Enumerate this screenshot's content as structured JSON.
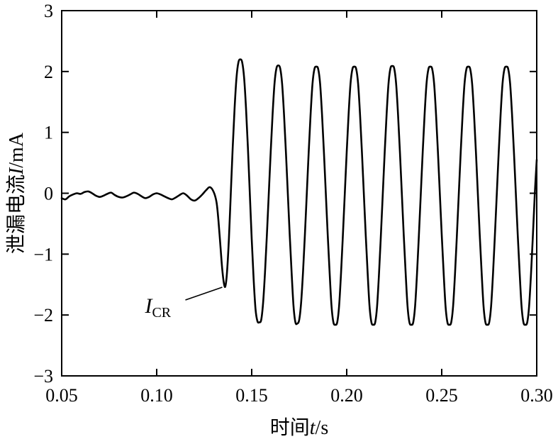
{
  "chart_data": {
    "type": "line",
    "xlabel": {
      "prefix": "时间",
      "var": "t",
      "unit": "/s"
    },
    "ylabel": {
      "prefix": "泄漏电流",
      "var": "I",
      "unit": "/mA"
    },
    "xlim": [
      0.05,
      0.3
    ],
    "ylim": [
      -3,
      3
    ],
    "x_ticks": [
      0.05,
      0.1,
      0.15,
      0.2,
      0.25,
      0.3
    ],
    "x_tick_labels": [
      "0.05",
      "0.10",
      "0.15",
      "0.20",
      "0.25",
      "0.30"
    ],
    "y_ticks": [
      -3,
      -2,
      -1,
      0,
      1,
      2,
      3
    ],
    "y_tick_labels": [
      "−3",
      "−2",
      "−1",
      "0",
      "1",
      "2",
      "3"
    ],
    "grid": false,
    "line_color": "#000000",
    "annotation": {
      "main": "I",
      "sub": "CR",
      "x": 0.136,
      "y": -1.52
    },
    "series": [
      {
        "x": [
          0.05,
          0.052,
          0.054,
          0.056,
          0.058,
          0.06,
          0.062,
          0.064,
          0.066,
          0.068,
          0.07,
          0.072,
          0.074,
          0.076,
          0.078,
          0.08,
          0.082,
          0.084,
          0.086,
          0.088,
          0.09,
          0.092,
          0.094,
          0.096,
          0.098,
          0.1,
          0.102,
          0.104,
          0.106,
          0.108,
          0.11,
          0.112,
          0.114,
          0.116,
          0.118,
          0.12,
          0.122,
          0.124,
          0.126,
          0.128,
          0.13,
          0.1315,
          0.1325,
          0.1335,
          0.1345,
          0.1355,
          0.1362,
          0.137,
          0.138,
          0.139,
          0.14,
          0.141,
          0.142,
          0.143,
          0.144,
          0.145,
          0.146,
          0.147,
          0.148,
          0.149,
          0.15,
          0.151,
          0.152,
          0.153,
          0.154,
          0.155,
          0.156,
          0.157,
          0.158,
          0.159,
          0.16,
          0.161,
          0.162,
          0.163,
          0.164,
          0.165,
          0.166,
          0.167,
          0.168,
          0.169,
          0.17,
          0.171,
          0.172,
          0.173,
          0.174,
          0.175,
          0.176,
          0.177,
          0.178,
          0.179,
          0.18,
          0.181,
          0.182,
          0.183,
          0.184,
          0.185,
          0.186,
          0.187,
          0.188,
          0.189,
          0.19,
          0.191,
          0.192,
          0.193,
          0.194,
          0.195,
          0.196,
          0.197,
          0.198,
          0.199,
          0.2,
          0.201,
          0.202,
          0.203,
          0.204,
          0.205,
          0.206,
          0.207,
          0.208,
          0.209,
          0.21,
          0.211,
          0.212,
          0.213,
          0.214,
          0.215,
          0.216,
          0.217,
          0.218,
          0.219,
          0.22,
          0.221,
          0.222,
          0.223,
          0.224,
          0.225,
          0.226,
          0.227,
          0.228,
          0.229,
          0.23,
          0.231,
          0.232,
          0.233,
          0.234,
          0.235,
          0.236,
          0.237,
          0.238,
          0.239,
          0.24,
          0.241,
          0.242,
          0.243,
          0.244,
          0.245,
          0.246,
          0.247,
          0.248,
          0.249,
          0.25,
          0.251,
          0.252,
          0.253,
          0.254,
          0.255,
          0.256,
          0.257,
          0.258,
          0.259,
          0.26,
          0.261,
          0.262,
          0.263,
          0.264,
          0.265,
          0.266,
          0.267,
          0.268,
          0.269,
          0.27,
          0.271,
          0.272,
          0.273,
          0.274,
          0.275,
          0.276,
          0.277,
          0.278,
          0.279,
          0.28,
          0.281,
          0.282,
          0.283,
          0.284,
          0.285,
          0.286,
          0.287,
          0.288,
          0.289,
          0.29,
          0.291,
          0.292,
          0.293,
          0.294,
          0.295,
          0.296,
          0.297,
          0.298,
          0.299,
          0.3
        ],
        "y": [
          -0.08,
          -0.1,
          -0.05,
          -0.02,
          0.0,
          -0.01,
          0.02,
          0.03,
          0.0,
          -0.04,
          -0.06,
          -0.04,
          -0.01,
          0.01,
          -0.03,
          -0.06,
          -0.07,
          -0.05,
          -0.02,
          0.01,
          -0.01,
          -0.05,
          -0.08,
          -0.06,
          -0.02,
          0.0,
          -0.02,
          -0.05,
          -0.08,
          -0.1,
          -0.07,
          -0.03,
          0.0,
          -0.04,
          -0.1,
          -0.12,
          -0.08,
          -0.02,
          0.05,
          0.1,
          0.02,
          -0.15,
          -0.45,
          -0.85,
          -1.25,
          -1.5,
          -1.52,
          -1.3,
          -0.75,
          0.0,
          0.75,
          1.4,
          1.9,
          2.15,
          2.2,
          2.15,
          1.9,
          1.4,
          0.75,
          0.0,
          -0.75,
          -1.4,
          -1.9,
          -2.1,
          -2.12,
          -2.08,
          -1.8,
          -1.3,
          -0.68,
          0.0,
          0.68,
          1.3,
          1.8,
          2.05,
          2.1,
          2.05,
          1.8,
          1.3,
          0.68,
          0.0,
          -0.68,
          -1.3,
          -1.85,
          -2.12,
          -2.14,
          -2.08,
          -1.8,
          -1.3,
          -0.68,
          0.0,
          0.68,
          1.3,
          1.8,
          2.04,
          2.08,
          2.04,
          1.8,
          1.3,
          0.68,
          0.0,
          -0.68,
          -1.3,
          -1.85,
          -2.12,
          -2.16,
          -2.12,
          -1.85,
          -1.32,
          -0.68,
          0.0,
          0.68,
          1.3,
          1.8,
          2.04,
          2.08,
          2.04,
          1.8,
          1.3,
          0.68,
          0.0,
          -0.68,
          -1.3,
          -1.85,
          -2.12,
          -2.16,
          -2.12,
          -1.85,
          -1.32,
          -0.68,
          0.0,
          0.68,
          1.3,
          1.8,
          2.05,
          2.09,
          2.05,
          1.8,
          1.3,
          0.68,
          0.0,
          -0.68,
          -1.3,
          -1.85,
          -2.12,
          -2.16,
          -2.12,
          -1.85,
          -1.32,
          -0.68,
          0.0,
          0.68,
          1.3,
          1.8,
          2.04,
          2.08,
          2.04,
          1.8,
          1.3,
          0.68,
          0.0,
          -0.68,
          -1.3,
          -1.85,
          -2.12,
          -2.16,
          -2.12,
          -1.85,
          -1.32,
          -0.68,
          0.0,
          0.68,
          1.3,
          1.8,
          2.04,
          2.08,
          2.04,
          1.8,
          1.3,
          0.68,
          0.0,
          -0.68,
          -1.3,
          -1.85,
          -2.12,
          -2.16,
          -2.12,
          -1.85,
          -1.32,
          -0.68,
          0.0,
          0.68,
          1.3,
          1.8,
          2.04,
          2.08,
          2.04,
          1.8,
          1.3,
          0.68,
          0.0,
          -0.68,
          -1.3,
          -1.85,
          -2.12,
          -2.16,
          -2.12,
          -1.85,
          -1.32,
          -0.68,
          0.0,
          0.55
        ]
      }
    ]
  }
}
